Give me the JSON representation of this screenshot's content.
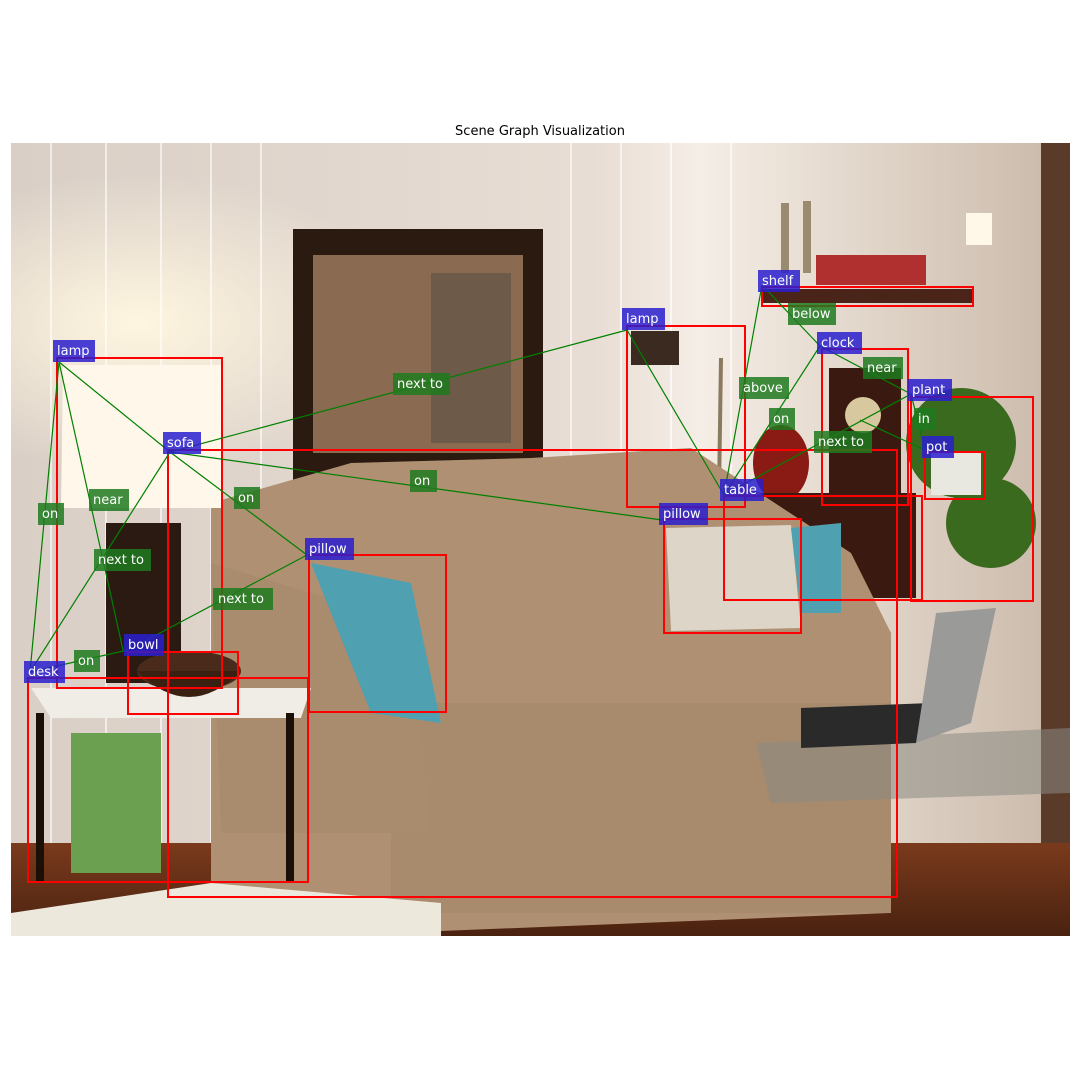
{
  "title": "Scene Graph Visualization",
  "colors": {
    "box": "#ff0000",
    "edge": "#008000",
    "object_label_bg": "#2a1fcf",
    "relation_label_bg": "#1f7a1f"
  },
  "objects": [
    {
      "id": "lamp_left",
      "label": "lamp"
    },
    {
      "id": "sofa",
      "label": "sofa"
    },
    {
      "id": "desk",
      "label": "desk"
    },
    {
      "id": "bowl",
      "label": "bowl"
    },
    {
      "id": "pillow_left",
      "label": "pillow"
    },
    {
      "id": "lamp_mid",
      "label": "lamp"
    },
    {
      "id": "pillow_right",
      "label": "pillow"
    },
    {
      "id": "table",
      "label": "table"
    },
    {
      "id": "shelf",
      "label": "shelf"
    },
    {
      "id": "clock",
      "label": "clock"
    },
    {
      "id": "plant",
      "label": "plant"
    },
    {
      "id": "pot",
      "label": "pot"
    }
  ],
  "relations": [
    {
      "label": "on"
    },
    {
      "label": "near"
    },
    {
      "label": "next to"
    },
    {
      "label": "on"
    },
    {
      "label": "next to"
    },
    {
      "label": "next to"
    },
    {
      "label": "on"
    },
    {
      "label": "on"
    },
    {
      "label": "below"
    },
    {
      "label": "above"
    },
    {
      "label": "on"
    },
    {
      "label": "near"
    },
    {
      "label": "next to"
    },
    {
      "label": "in"
    }
  ]
}
